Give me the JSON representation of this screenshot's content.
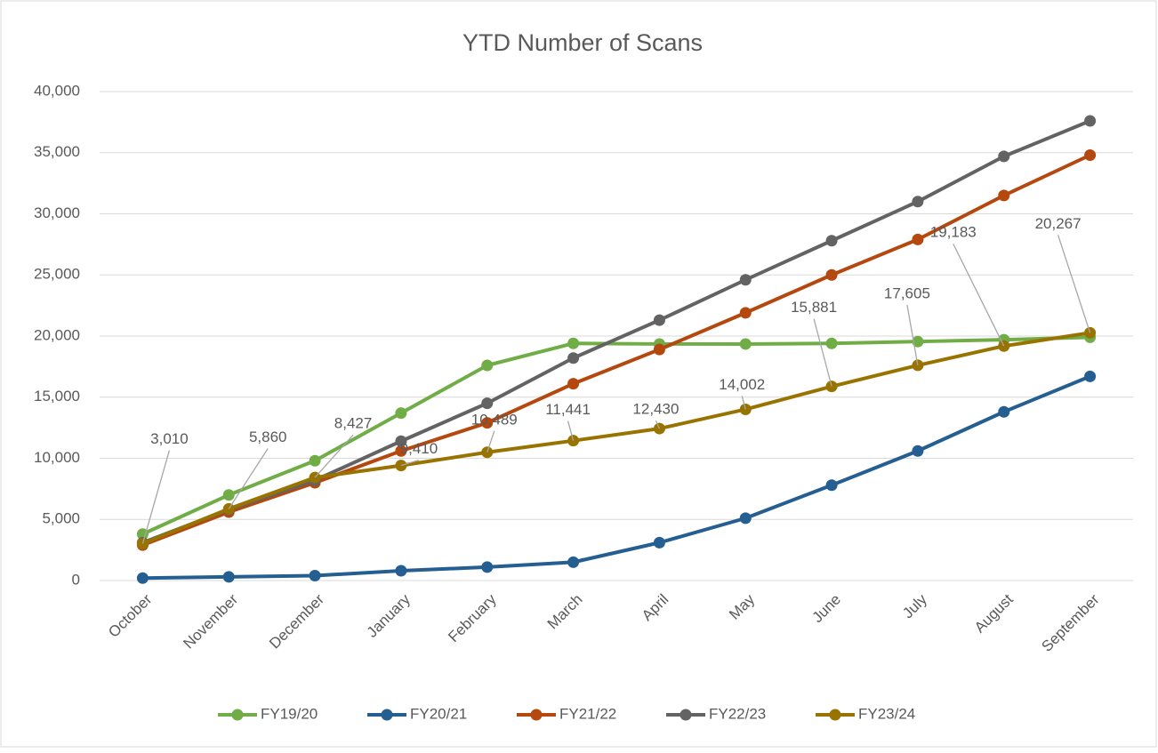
{
  "chart_data": {
    "type": "line",
    "title": "YTD Number of Scans",
    "categories": [
      "October",
      "November",
      "December",
      "January",
      "February",
      "March",
      "April",
      "May",
      "June",
      "July",
      "August",
      "September"
    ],
    "ylim": [
      0,
      40000
    ],
    "yticks": [
      0,
      {
        "value": 5000,
        "label": "5,000"
      },
      {
        "value": 10000,
        "label": "10,000"
      },
      {
        "value": 15000,
        "label": "15,000"
      },
      {
        "value": 20000,
        "label": "20,000"
      },
      {
        "value": 25000,
        "label": "25,000"
      },
      {
        "value": 30000,
        "label": "30,000"
      },
      {
        "value": 35000,
        "label": "35,000"
      },
      {
        "value": 40000,
        "label": "40,000"
      }
    ],
    "grid": true,
    "legend": "bottom",
    "series": [
      {
        "name": "FY19/20",
        "color": "#70ad47",
        "values": [
          3800,
          7000,
          9800,
          13700,
          17600,
          19400,
          19350,
          19350,
          19400,
          19550,
          19700,
          19900
        ]
      },
      {
        "name": "FY20/21",
        "color": "#255e91",
        "values": [
          200,
          300,
          400,
          800,
          1100,
          1500,
          3100,
          5100,
          7800,
          10600,
          13800,
          16700
        ]
      },
      {
        "name": "FY21/22",
        "color": "#b4480e",
        "values": [
          2900,
          5600,
          8000,
          10600,
          12900,
          16100,
          18900,
          21900,
          25000,
          27900,
          31500,
          34800
        ]
      },
      {
        "name": "FY22/23",
        "color": "#636363",
        "values": [
          3100,
          5800,
          8200,
          11400,
          14500,
          18200,
          21300,
          24600,
          27800,
          31000,
          34700,
          37600
        ]
      },
      {
        "name": "FY23/24",
        "color": "#997300",
        "values": [
          3010,
          5860,
          8427,
          9410,
          10489,
          11441,
          12430,
          14002,
          15881,
          17605,
          19183,
          20267
        ],
        "value_labels": [
          "3,010",
          "5,860",
          "8,427",
          "9,410",
          "10,489",
          "11,441",
          "12,430",
          "14,002",
          "15,881",
          "17,605",
          "19,183",
          "20,267"
        ]
      }
    ]
  }
}
